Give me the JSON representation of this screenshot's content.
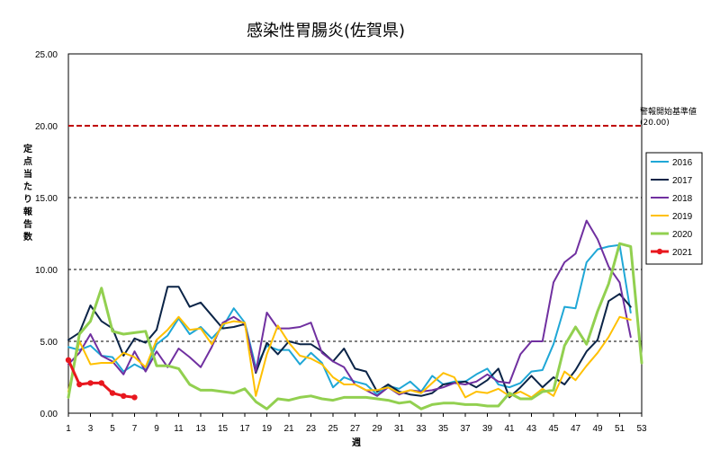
{
  "chart_data": {
    "type": "line",
    "title": "感染性胃腸炎(佐賀県)",
    "xlabel": "週",
    "ylabel": "定点当たり報告数",
    "xlim": [
      1,
      53
    ],
    "ylim": [
      0,
      25
    ],
    "x_ticks": [
      1,
      3,
      5,
      7,
      9,
      11,
      13,
      15,
      17,
      19,
      21,
      23,
      25,
      27,
      29,
      31,
      33,
      35,
      37,
      39,
      41,
      43,
      45,
      47,
      49,
      51,
      53
    ],
    "y_ticks": [
      "0.00",
      "5.00",
      "10.00",
      "15.00",
      "20.00",
      "25.00"
    ],
    "grid": "horizontal dashed",
    "legend_position": "right",
    "threshold": {
      "value": 20.0,
      "label_line1": "警報開始基準値",
      "label_line2": "(20.00)",
      "color": "#c00000"
    },
    "x": [
      1,
      2,
      3,
      4,
      5,
      6,
      7,
      8,
      9,
      10,
      11,
      12,
      13,
      14,
      15,
      16,
      17,
      18,
      19,
      20,
      21,
      22,
      23,
      24,
      25,
      26,
      27,
      28,
      29,
      30,
      31,
      32,
      33,
      34,
      35,
      36,
      37,
      38,
      39,
      40,
      41,
      42,
      43,
      44,
      45,
      46,
      47,
      48,
      49,
      50,
      51,
      52,
      53
    ],
    "series": [
      {
        "name": "2016",
        "color": "#1fa7d6",
        "width": 2,
        "marker": false,
        "values": [
          4.6,
          4.4,
          4.7,
          4.0,
          3.9,
          2.9,
          3.4,
          3.0,
          4.8,
          5.4,
          6.6,
          5.5,
          6.0,
          5.2,
          6.0,
          7.3,
          6.3,
          3.2,
          4.7,
          4.4,
          4.4,
          3.4,
          4.2,
          3.5,
          1.8,
          2.5,
          2.2,
          2.0,
          1.3,
          1.9,
          1.7,
          2.2,
          1.5,
          2.6,
          2.0,
          2.2,
          2.2,
          2.7,
          3.1,
          2.0,
          1.8,
          2.1,
          2.9,
          3.0,
          4.8,
          7.4,
          7.3,
          10.5,
          11.4,
          11.6,
          11.7,
          7.0,
          null
        ]
      },
      {
        "name": "2017",
        "color": "#0b2447",
        "width": 2,
        "marker": false,
        "values": [
          5.1,
          5.6,
          7.5,
          6.4,
          5.9,
          4.0,
          5.2,
          4.9,
          5.8,
          8.8,
          8.8,
          7.4,
          7.7,
          6.8,
          5.9,
          6.0,
          6.2,
          2.8,
          4.9,
          4.1,
          5.0,
          4.8,
          4.8,
          4.3,
          3.6,
          4.5,
          3.1,
          2.9,
          1.5,
          2.0,
          1.5,
          1.3,
          1.2,
          1.4,
          2.0,
          2.1,
          2.2,
          1.8,
          2.3,
          3.1,
          1.1,
          1.8,
          2.6,
          1.8,
          2.5,
          2.0,
          3.0,
          4.3,
          5.1,
          7.8,
          8.3,
          7.4,
          null
        ]
      },
      {
        "name": "2018",
        "color": "#7030a0",
        "width": 2,
        "marker": false,
        "values": [
          3.4,
          4.2,
          5.5,
          4.0,
          3.6,
          2.7,
          4.3,
          2.9,
          4.3,
          3.2,
          4.5,
          3.9,
          3.2,
          4.6,
          6.3,
          6.7,
          6.2,
          2.9,
          7.0,
          5.9,
          5.9,
          6.0,
          6.3,
          4.2,
          3.6,
          3.2,
          2.0,
          1.6,
          1.2,
          1.8,
          1.3,
          1.6,
          1.5,
          1.6,
          1.8,
          2.1,
          2.0,
          2.2,
          2.7,
          2.2,
          2.1,
          4.1,
          5.0,
          5.0,
          9.1,
          10.5,
          11.1,
          13.4,
          12.1,
          10.2,
          9.1,
          5.3,
          null
        ]
      },
      {
        "name": "2019",
        "color": "#ffc000",
        "width": 2,
        "marker": false,
        "values": [
          1.5,
          5.0,
          3.4,
          3.5,
          3.5,
          4.2,
          3.9,
          3.2,
          5.1,
          5.8,
          6.7,
          5.8,
          5.9,
          4.8,
          6.2,
          6.4,
          6.3,
          1.2,
          4.1,
          6.1,
          4.9,
          4.0,
          3.8,
          3.4,
          2.5,
          2.0,
          2.0,
          1.6,
          1.6,
          1.8,
          1.4,
          1.6,
          1.4,
          2.1,
          2.8,
          2.5,
          1.1,
          1.5,
          1.4,
          1.7,
          1.2,
          1.5,
          1.1,
          1.7,
          1.2,
          2.9,
          2.3,
          3.3,
          4.2,
          5.3,
          6.7,
          6.5,
          null
        ]
      },
      {
        "name": "2020",
        "color": "#92d050",
        "width": 3,
        "marker": false,
        "values": [
          1.1,
          5.5,
          6.4,
          8.7,
          5.7,
          5.5,
          5.6,
          5.7,
          3.3,
          3.3,
          3.1,
          2.0,
          1.6,
          1.6,
          1.5,
          1.4,
          1.7,
          0.8,
          0.3,
          1.0,
          0.9,
          1.1,
          1.2,
          1.0,
          0.9,
          1.1,
          1.1,
          1.1,
          1.0,
          0.9,
          0.7,
          0.8,
          0.3,
          0.6,
          0.7,
          0.7,
          0.6,
          0.6,
          0.5,
          0.5,
          1.4,
          1.0,
          1.0,
          1.5,
          1.6,
          4.7,
          6.0,
          4.8,
          7.1,
          9.0,
          11.8,
          11.6,
          3.5
        ]
      },
      {
        "name": "2021",
        "color": "#e8171e",
        "width": 3,
        "marker": true,
        "values": [
          3.7,
          2.0,
          2.1,
          2.1,
          1.4,
          1.2,
          1.1,
          null,
          null,
          null,
          null,
          null,
          null,
          null,
          null,
          null,
          null,
          null,
          null,
          null,
          null,
          null,
          null,
          null,
          null,
          null,
          null,
          null,
          null,
          null,
          null,
          null,
          null,
          null,
          null,
          null,
          null,
          null,
          null,
          null,
          null,
          null,
          null,
          null,
          null,
          null,
          null,
          null,
          null,
          null,
          null,
          null,
          null
        ]
      }
    ]
  }
}
